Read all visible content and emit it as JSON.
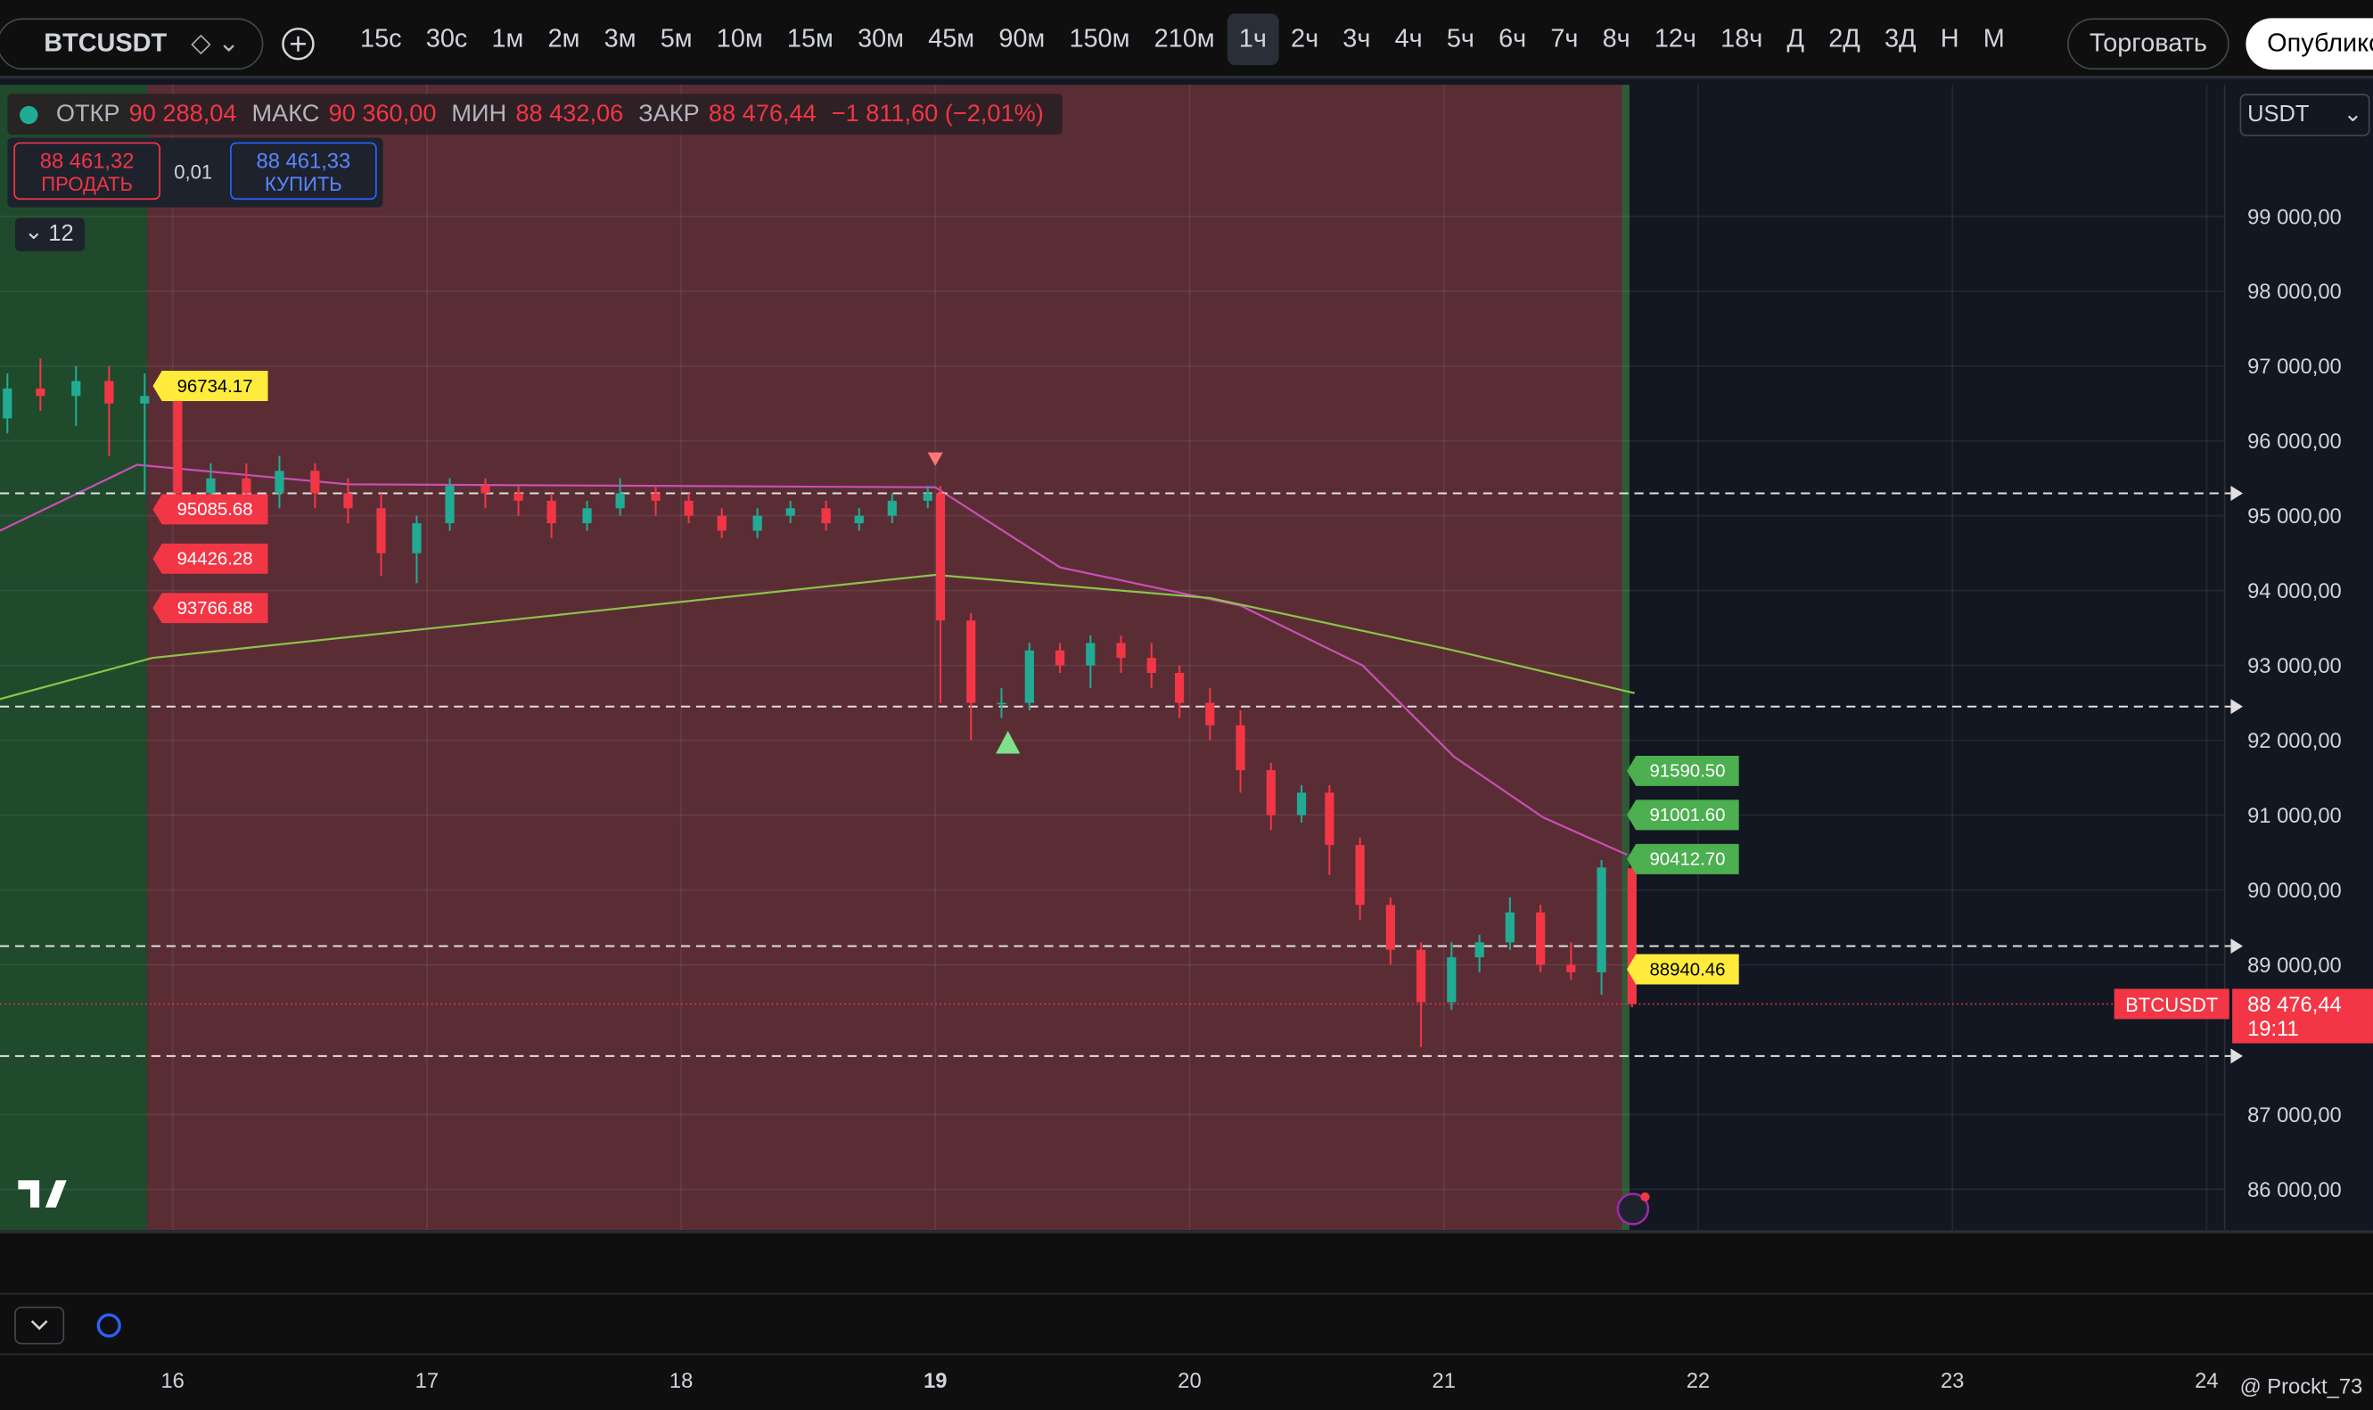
{
  "toolbar": {
    "symbol": "BTCUSDT",
    "intervals": [
      "15с",
      "30с",
      "1м",
      "2м",
      "3м",
      "5м",
      "10м",
      "15м",
      "30м",
      "45м",
      "90м",
      "150м",
      "210м",
      "1ч",
      "2ч",
      "3ч",
      "4ч",
      "5ч",
      "6ч",
      "7ч",
      "8ч",
      "12ч",
      "18ч",
      "Д",
      "2Д",
      "3Д",
      "Н",
      "М"
    ],
    "active_index": 13,
    "trade": "Торговать",
    "publish": "Опублико"
  },
  "legend": {
    "open_label": "ОТКР",
    "open": "90 288,04",
    "high_label": "МАКС",
    "high": "90 360,00",
    "low_label": "МИН",
    "low": "88 432,06",
    "close_label": "ЗАКР",
    "close": "88 476,44",
    "change": "−1 811,60 (−2,01%)"
  },
  "order": {
    "sell_price": "88 461,32",
    "sell": "ПРОДАТЬ",
    "spread": "0,01",
    "buy_price": "88 461,33",
    "buy": "КУПИТЬ"
  },
  "indicators_count": "12",
  "currency": "USDT",
  "watermark": "@ Prockt_73",
  "chart_data": {
    "type": "candlestick",
    "xlim": [
      15.321,
      24.071
    ],
    "xticks": [
      16,
      17,
      18,
      19,
      20,
      21,
      22,
      23,
      24
    ],
    "ylim": [
      85454,
      100759
    ],
    "yticks": [
      {
        "value": 99000,
        "label": "99 000,00"
      },
      {
        "value": 98000,
        "label": "98 000,00"
      },
      {
        "value": 97000,
        "label": "97 000,00"
      },
      {
        "value": 96000,
        "label": "96 000,00"
      },
      {
        "value": 95000,
        "label": "95 000,00"
      },
      {
        "value": 94000,
        "label": "94 000,00"
      },
      {
        "value": 93000,
        "label": "93 000,00"
      },
      {
        "value": 92000,
        "label": "92 000,00"
      },
      {
        "value": 91000,
        "label": "91 000,00"
      },
      {
        "value": 90000,
        "label": "90 000,00"
      },
      {
        "value": 89000,
        "label": "89 000,00"
      },
      {
        "value": 87000,
        "label": "87 000,00"
      },
      {
        "value": 86000,
        "label": "86 000,00"
      }
    ],
    "grid": true,
    "up_color": "#22ab94",
    "down_color": "#f23645",
    "sessions": [
      {
        "start": 15.321,
        "end": 15.9,
        "color": "#1f4a2c"
      },
      {
        "start": 15.9,
        "end": 21.7,
        "color": "#5a2d35"
      },
      {
        "start": 21.7,
        "end": 21.73,
        "color": "#2e5a35"
      }
    ],
    "candles": [
      [
        15.35,
        96300,
        96900,
        96100,
        96700
      ],
      [
        15.48,
        96700,
        97100,
        96400,
        96600
      ],
      [
        15.62,
        96600,
        97000,
        96200,
        96800
      ],
      [
        15.75,
        96800,
        97000,
        95800,
        96500
      ],
      [
        15.89,
        96500,
        96900,
        95300,
        96600
      ],
      [
        16.02,
        96600,
        96700,
        95000,
        95300
      ],
      [
        16.15,
        95300,
        95700,
        95000,
        95500
      ],
      [
        16.29,
        95500,
        95700,
        95100,
        95300
      ],
      [
        16.42,
        95300,
        95800,
        95100,
        95600
      ],
      [
        16.56,
        95600,
        95700,
        95100,
        95300
      ],
      [
        16.69,
        95300,
        95500,
        94900,
        95100
      ],
      [
        16.82,
        95100,
        95300,
        94200,
        94500
      ],
      [
        16.96,
        94500,
        95000,
        94100,
        94900
      ],
      [
        17.09,
        94900,
        95500,
        94800,
        95400
      ],
      [
        17.23,
        95400,
        95500,
        95100,
        95300
      ],
      [
        17.36,
        95300,
        95400,
        95000,
        95200
      ],
      [
        17.49,
        95200,
        95300,
        94700,
        94900
      ],
      [
        17.63,
        94900,
        95200,
        94800,
        95100
      ],
      [
        17.76,
        95100,
        95500,
        95000,
        95300
      ],
      [
        17.9,
        95300,
        95400,
        95000,
        95200
      ],
      [
        18.03,
        95200,
        95300,
        94900,
        95000
      ],
      [
        18.16,
        95000,
        95100,
        94700,
        94800
      ],
      [
        18.3,
        94800,
        95100,
        94700,
        95000
      ],
      [
        18.43,
        95000,
        95200,
        94900,
        95100
      ],
      [
        18.57,
        95100,
        95200,
        94800,
        94900
      ],
      [
        18.7,
        94900,
        95100,
        94800,
        95000
      ],
      [
        18.83,
        95000,
        95300,
        94900,
        95200
      ],
      [
        18.97,
        95200,
        95400,
        95100,
        95300
      ],
      [
        19.02,
        95300,
        95400,
        92500,
        93600
      ],
      [
        19.14,
        93600,
        93700,
        92000,
        92500
      ],
      [
        19.26,
        92500,
        92700,
        92300,
        92500
      ],
      [
        19.37,
        92500,
        93300,
        92400,
        93200
      ],
      [
        19.49,
        93200,
        93300,
        92900,
        93000
      ],
      [
        19.61,
        93000,
        93400,
        92700,
        93300
      ],
      [
        19.73,
        93300,
        93400,
        92900,
        93100
      ],
      [
        19.85,
        93100,
        93300,
        92700,
        92900
      ],
      [
        19.96,
        92900,
        93000,
        92300,
        92500
      ],
      [
        20.08,
        92500,
        92700,
        92000,
        92200
      ],
      [
        20.2,
        92200,
        92400,
        91300,
        91600
      ],
      [
        20.32,
        91600,
        91700,
        90800,
        91000
      ],
      [
        20.44,
        91000,
        91400,
        90900,
        91300
      ],
      [
        20.55,
        91300,
        91400,
        90200,
        90600
      ],
      [
        20.67,
        90600,
        90700,
        89600,
        89800
      ],
      [
        20.79,
        89800,
        89900,
        89000,
        89200
      ],
      [
        20.91,
        89200,
        89300,
        87900,
        88500
      ],
      [
        21.03,
        88500,
        89300,
        88400,
        89100
      ],
      [
        21.14,
        89100,
        89400,
        88900,
        89300
      ],
      [
        21.26,
        89300,
        89900,
        89200,
        89700
      ],
      [
        21.38,
        89700,
        89800,
        88900,
        89000
      ],
      [
        21.5,
        89000,
        89300,
        88800,
        88900
      ],
      [
        21.62,
        88900,
        90400,
        88600,
        90300
      ],
      [
        21.74,
        90288.04,
        90360,
        88432.06,
        88476.44
      ]
    ],
    "lines": [
      {
        "color": "#c94fb3",
        "x": [
          15.32,
          15.86,
          16.69,
          19.0,
          19.49,
          20.2,
          20.68,
          21.04,
          21.39,
          21.72
        ],
        "values": [
          94800,
          95680,
          95420,
          95380,
          94310,
          93800,
          93000,
          91780,
          90970,
          90470
        ]
      },
      {
        "color": "#8bc34a",
        "x": [
          15.32,
          15.92,
          19.0,
          20.08,
          21.04,
          21.75
        ],
        "values": [
          92550,
          93100,
          94210,
          93900,
          93200,
          92630
        ]
      }
    ],
    "hlines": [
      95300,
      92450,
      89250,
      87780
    ],
    "left_markers": [
      {
        "value": 96734.17,
        "label": "96734.17",
        "color": "#ffeb3b"
      },
      {
        "value": 95085.68,
        "label": "95085.68",
        "color": "#f23645"
      },
      {
        "value": 94426.28,
        "label": "94426.28",
        "color": "#f23645"
      },
      {
        "value": 93766.88,
        "label": "93766.88",
        "color": "#f23645"
      }
    ],
    "right_markers": [
      {
        "value": 91590.5,
        "label": "91590.50",
        "color": "#4caf50"
      },
      {
        "value": 91001.6,
        "label": "91001.60",
        "color": "#4caf50"
      },
      {
        "value": 90412.7,
        "label": "90412.70",
        "color": "#4caf50"
      },
      {
        "value": 88940.46,
        "label": "88940.46",
        "color": "#ffeb3b"
      }
    ],
    "last_price": {
      "value": 88476.44,
      "label": "88 476,44",
      "symbol": "BTCUSDT",
      "countdown": "19:11"
    }
  }
}
